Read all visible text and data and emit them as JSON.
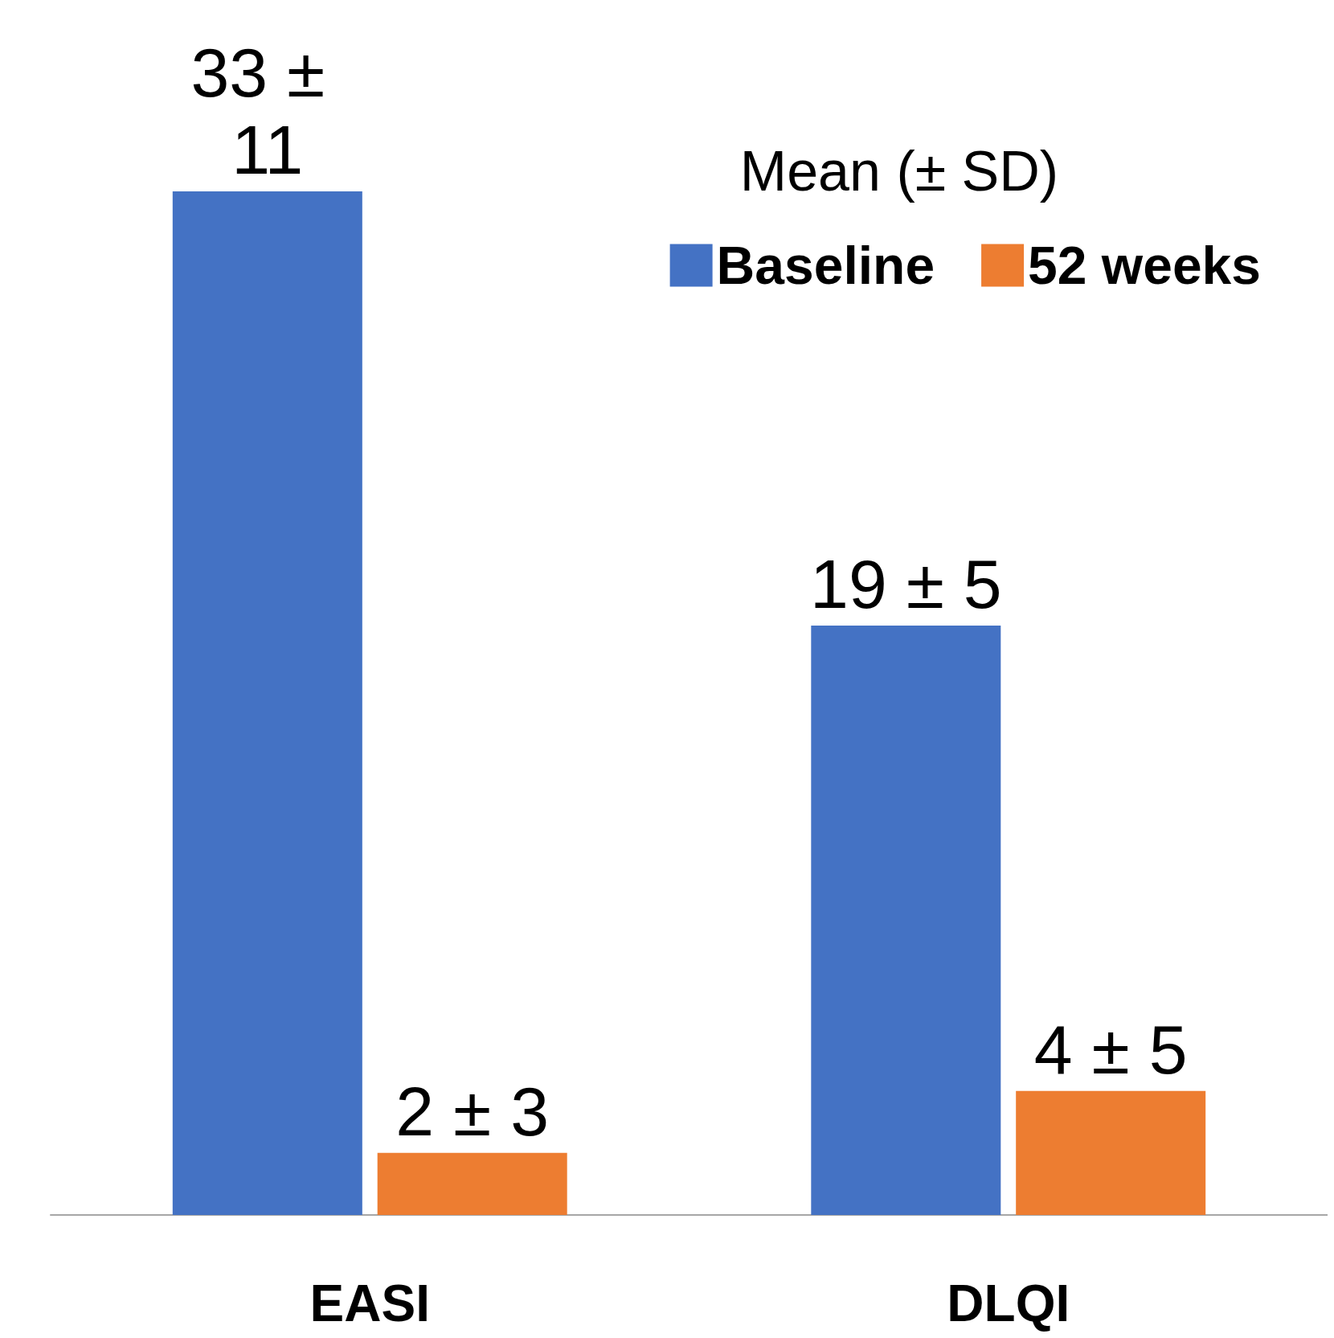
{
  "chart_data": {
    "type": "bar",
    "tick_labels": "x",
    "legend_title": "Mean (± SD)",
    "legend": "top right",
    "categories": [
      "EASI",
      "DLQI"
    ],
    "series": [
      {
        "name": "Baseline",
        "color": "#4472c4",
        "values": [
          33,
          19
        ],
        "value_labels": [
          "33 ± 11",
          "19 ± 5"
        ]
      },
      {
        "name": "52 weeks",
        "color": "#ed7d31",
        "values": [
          2,
          4
        ],
        "value_labels": [
          "2 ± 3",
          "4 ± 5"
        ]
      }
    ]
  }
}
